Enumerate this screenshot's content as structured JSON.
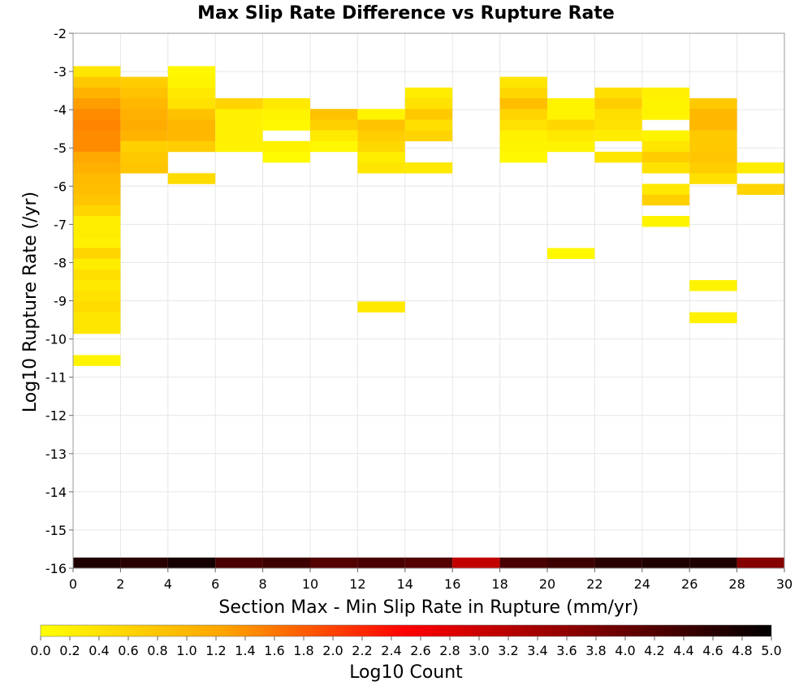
{
  "chart_data": {
    "type": "heatmap",
    "title": "Max Slip Rate Difference vs Rupture Rate",
    "xlabel": "Section Max - Min Slip Rate in Rupture (mm/yr)",
    "ylabel": "Log10 Rupture Rate (/yr)",
    "xlim": [
      0,
      30
    ],
    "ylim": [
      -16,
      -2
    ],
    "x_ticks": [
      "0",
      "2",
      "4",
      "6",
      "8",
      "10",
      "12",
      "14",
      "16",
      "18",
      "20",
      "22",
      "24",
      "26",
      "28",
      "30"
    ],
    "y_ticks": [
      "-2",
      "-3",
      "-4",
      "-5",
      "-6",
      "-7",
      "-8",
      "-9",
      "-10",
      "-11",
      "-12",
      "-13",
      "-14",
      "-15",
      "-16"
    ],
    "grid": true,
    "x_bin_width": 2,
    "y_bin_width": 0.28,
    "colorbar": {
      "label": "Log10 Count",
      "min": 0.0,
      "max": 5.0,
      "ticks": [
        "0.0",
        "0.2",
        "0.4",
        "0.6",
        "0.8",
        "1.0",
        "1.2",
        "1.4",
        "1.6",
        "1.8",
        "2.0",
        "2.2",
        "2.4",
        "2.6",
        "2.8",
        "3.0",
        "3.2",
        "3.4",
        "3.6",
        "3.8",
        "4.0",
        "4.2",
        "4.4",
        "4.6",
        "4.8",
        "5.0"
      ],
      "colors": [
        "#ffff00",
        "#ffa500",
        "#ff0000",
        "#800000",
        "#000000"
      ]
    },
    "cells": [
      {
        "x": 0,
        "y": -3.14,
        "v": 0.35
      },
      {
        "x": 0,
        "y": -3.42,
        "v": 0.75
      },
      {
        "x": 0,
        "y": -3.7,
        "v": 1.05
      },
      {
        "x": 0,
        "y": -3.98,
        "v": 1.3
      },
      {
        "x": 0,
        "y": -4.26,
        "v": 1.45
      },
      {
        "x": 0,
        "y": -4.54,
        "v": 1.5
      },
      {
        "x": 0,
        "y": -4.82,
        "v": 1.45
      },
      {
        "x": 0,
        "y": -5.1,
        "v": 1.45
      },
      {
        "x": 0,
        "y": -5.38,
        "v": 1.2
      },
      {
        "x": 0,
        "y": -5.66,
        "v": 1.1
      },
      {
        "x": 0,
        "y": -5.94,
        "v": 0.95
      },
      {
        "x": 0,
        "y": -6.22,
        "v": 0.9
      },
      {
        "x": 0,
        "y": -6.5,
        "v": 0.8
      },
      {
        "x": 0,
        "y": -6.78,
        "v": 0.6
      },
      {
        "x": 0,
        "y": -7.06,
        "v": 0.25
      },
      {
        "x": 0,
        "y": -7.34,
        "v": 0.25
      },
      {
        "x": 0,
        "y": -7.62,
        "v": 0.2
      },
      {
        "x": 0,
        "y": -7.9,
        "v": 0.6
      },
      {
        "x": 0,
        "y": -8.18,
        "v": 0.25
      },
      {
        "x": 0,
        "y": -8.46,
        "v": 0.45
      },
      {
        "x": 0,
        "y": -8.74,
        "v": 0.3
      },
      {
        "x": 0,
        "y": -9.02,
        "v": 0.4
      },
      {
        "x": 0,
        "y": -9.3,
        "v": 0.5
      },
      {
        "x": 0,
        "y": -9.58,
        "v": 0.35
      },
      {
        "x": 0,
        "y": -9.86,
        "v": 0.35
      },
      {
        "x": 0,
        "y": -10.7,
        "v": 0.15
      },
      {
        "x": 2,
        "y": -3.42,
        "v": 0.7
      },
      {
        "x": 2,
        "y": -3.7,
        "v": 0.85
      },
      {
        "x": 2,
        "y": -3.98,
        "v": 1.0
      },
      {
        "x": 2,
        "y": -4.26,
        "v": 1.1
      },
      {
        "x": 2,
        "y": -4.54,
        "v": 1.15
      },
      {
        "x": 2,
        "y": -4.82,
        "v": 1.05
      },
      {
        "x": 2,
        "y": -5.1,
        "v": 0.65
      },
      {
        "x": 2,
        "y": -5.38,
        "v": 0.75
      },
      {
        "x": 2,
        "y": -5.66,
        "v": 0.8
      },
      {
        "x": 4,
        "y": -3.14,
        "v": 0.1
      },
      {
        "x": 4,
        "y": -3.42,
        "v": 0.15
      },
      {
        "x": 4,
        "y": -3.7,
        "v": 0.3
      },
      {
        "x": 4,
        "y": -3.98,
        "v": 0.4
      },
      {
        "x": 4,
        "y": -4.26,
        "v": 0.85
      },
      {
        "x": 4,
        "y": -4.54,
        "v": 1.0
      },
      {
        "x": 4,
        "y": -4.82,
        "v": 1.0
      },
      {
        "x": 4,
        "y": -5.1,
        "v": 0.7
      },
      {
        "x": 4,
        "y": -5.94,
        "v": 0.5
      },
      {
        "x": 6,
        "y": -3.98,
        "v": 0.6
      },
      {
        "x": 6,
        "y": -4.26,
        "v": 0.2
      },
      {
        "x": 6,
        "y": -4.54,
        "v": 0.2
      },
      {
        "x": 6,
        "y": -4.82,
        "v": 0.2
      },
      {
        "x": 6,
        "y": -5.1,
        "v": 0.2
      },
      {
        "x": 8,
        "y": -3.98,
        "v": 0.3
      },
      {
        "x": 8,
        "y": -4.26,
        "v": 0.15
      },
      {
        "x": 8,
        "y": -4.54,
        "v": 0.1
      },
      {
        "x": 8,
        "y": -5.1,
        "v": 0.2
      },
      {
        "x": 8,
        "y": -5.38,
        "v": 0.05
      },
      {
        "x": 10,
        "y": -4.26,
        "v": 0.85
      },
      {
        "x": 10,
        "y": -4.54,
        "v": 0.65
      },
      {
        "x": 10,
        "y": -4.82,
        "v": 0.3
      },
      {
        "x": 10,
        "y": -5.1,
        "v": 0.1
      },
      {
        "x": 12,
        "y": -4.26,
        "v": 0.15
      },
      {
        "x": 12,
        "y": -4.54,
        "v": 0.85
      },
      {
        "x": 12,
        "y": -4.82,
        "v": 0.7
      },
      {
        "x": 12,
        "y": -5.1,
        "v": 0.55
      },
      {
        "x": 12,
        "y": -5.38,
        "v": 0.25
      },
      {
        "x": 12,
        "y": -5.66,
        "v": 0.35
      },
      {
        "x": 12,
        "y": -9.3,
        "v": 0.3
      },
      {
        "x": 14,
        "y": -3.7,
        "v": 0.25
      },
      {
        "x": 14,
        "y": -3.98,
        "v": 0.4
      },
      {
        "x": 14,
        "y": -4.26,
        "v": 0.75
      },
      {
        "x": 14,
        "y": -4.54,
        "v": 0.45
      },
      {
        "x": 14,
        "y": -4.82,
        "v": 0.6
      },
      {
        "x": 14,
        "y": -5.66,
        "v": 0.3
      },
      {
        "x": 18,
        "y": -3.42,
        "v": 0.35
      },
      {
        "x": 18,
        "y": -3.7,
        "v": 0.55
      },
      {
        "x": 18,
        "y": -3.98,
        "v": 0.9
      },
      {
        "x": 18,
        "y": -4.26,
        "v": 0.6
      },
      {
        "x": 18,
        "y": -4.54,
        "v": 0.4
      },
      {
        "x": 18,
        "y": -4.82,
        "v": 0.2
      },
      {
        "x": 18,
        "y": -5.1,
        "v": 0.15
      },
      {
        "x": 18,
        "y": -5.38,
        "v": 0.1
      },
      {
        "x": 20,
        "y": -3.98,
        "v": 0.15
      },
      {
        "x": 20,
        "y": -4.26,
        "v": 0.15
      },
      {
        "x": 20,
        "y": -4.54,
        "v": 0.55
      },
      {
        "x": 20,
        "y": -4.82,
        "v": 0.3
      },
      {
        "x": 20,
        "y": -5.1,
        "v": 0.15
      },
      {
        "x": 20,
        "y": -7.9,
        "v": 0.1
      },
      {
        "x": 22,
        "y": -3.7,
        "v": 0.45
      },
      {
        "x": 22,
        "y": -3.98,
        "v": 0.7
      },
      {
        "x": 22,
        "y": -4.26,
        "v": 0.45
      },
      {
        "x": 22,
        "y": -4.54,
        "v": 0.4
      },
      {
        "x": 22,
        "y": -4.82,
        "v": 0.25
      },
      {
        "x": 22,
        "y": -5.38,
        "v": 0.35
      },
      {
        "x": 24,
        "y": -3.7,
        "v": 0.2
      },
      {
        "x": 24,
        "y": -3.98,
        "v": 0.15
      },
      {
        "x": 24,
        "y": -4.26,
        "v": 0.15
      },
      {
        "x": 24,
        "y": -4.82,
        "v": 0.15
      },
      {
        "x": 24,
        "y": -5.1,
        "v": 0.35
      },
      {
        "x": 24,
        "y": -5.38,
        "v": 0.7
      },
      {
        "x": 24,
        "y": -5.66,
        "v": 0.4
      },
      {
        "x": 24,
        "y": -6.22,
        "v": 0.3
      },
      {
        "x": 24,
        "y": -6.5,
        "v": 0.65
      },
      {
        "x": 24,
        "y": -7.06,
        "v": 0.15
      },
      {
        "x": 26,
        "y": -3.98,
        "v": 0.75
      },
      {
        "x": 26,
        "y": -4.26,
        "v": 1.0
      },
      {
        "x": 26,
        "y": -4.54,
        "v": 1.0
      },
      {
        "x": 26,
        "y": -4.82,
        "v": 0.75
      },
      {
        "x": 26,
        "y": -5.1,
        "v": 0.75
      },
      {
        "x": 26,
        "y": -5.38,
        "v": 0.8
      },
      {
        "x": 26,
        "y": -5.66,
        "v": 0.7
      },
      {
        "x": 26,
        "y": -5.94,
        "v": 0.45
      },
      {
        "x": 26,
        "y": -8.74,
        "v": 0.15
      },
      {
        "x": 26,
        "y": -9.58,
        "v": 0.2
      },
      {
        "x": 28,
        "y": -5.66,
        "v": 0.25
      },
      {
        "x": 28,
        "y": -6.22,
        "v": 0.6
      }
    ],
    "bottom_row": {
      "y": -16.0,
      "values": [
        4.7,
        4.6,
        4.8,
        4.3,
        4.4,
        4.2,
        4.3,
        4.2,
        3.1,
        4.3,
        4.4,
        4.6,
        4.7,
        4.7,
        3.7
      ]
    }
  }
}
